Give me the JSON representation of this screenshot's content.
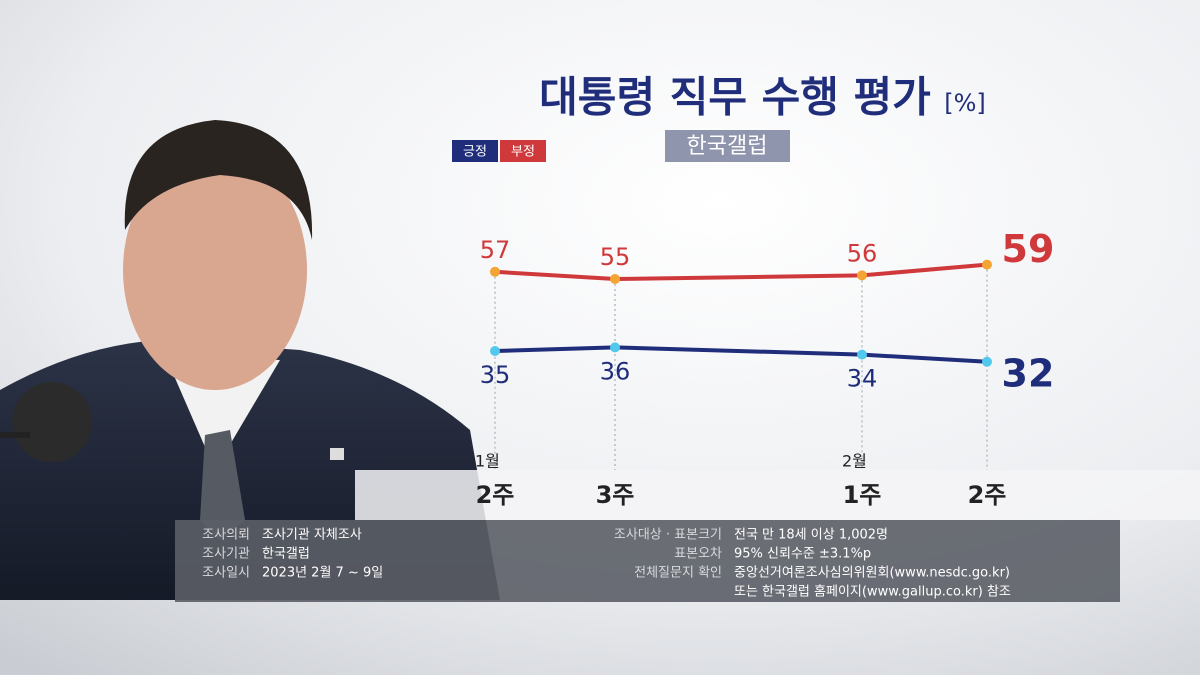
{
  "chart_data": {
    "type": "line",
    "title": "대통령 직무 수행 평가",
    "unit": "[%]",
    "subtitle": "한국갤럽",
    "categories": [
      "2주",
      "3주",
      "1주",
      "2주"
    ],
    "months": [
      "1월",
      null,
      "2월",
      null
    ],
    "series": [
      {
        "name": "긍정",
        "color": "#1f2d7a",
        "marker_color": "#52c9ec",
        "values": [
          35,
          36,
          34,
          32
        ]
      },
      {
        "name": "부정",
        "color": "#d0393b",
        "marker_color": "#f3a433",
        "values": [
          57,
          55,
          56,
          59
        ]
      }
    ]
  },
  "notes": {
    "left": [
      {
        "label": "조사의뢰",
        "value": "조사기관 자체조사"
      },
      {
        "label": "조사기관",
        "value": "한국갤럽"
      },
      {
        "label": "조사일시",
        "value": "2023년 2월 7 ~ 9일"
      }
    ],
    "right": [
      {
        "label": "조사대상 · 표본크기",
        "value": "전국 만 18세 이상 1,002명"
      },
      {
        "label": "표본오차",
        "value": "95% 신뢰수준 ±3.1%p"
      },
      {
        "label": "전체질문지 확인",
        "value": "중앙선거여론조사심의위원회(www.nesdc.go.kr)"
      }
    ],
    "right_extra": "또는 한국갤럽 홈페이지(www.gallup.co.kr) 참조"
  }
}
